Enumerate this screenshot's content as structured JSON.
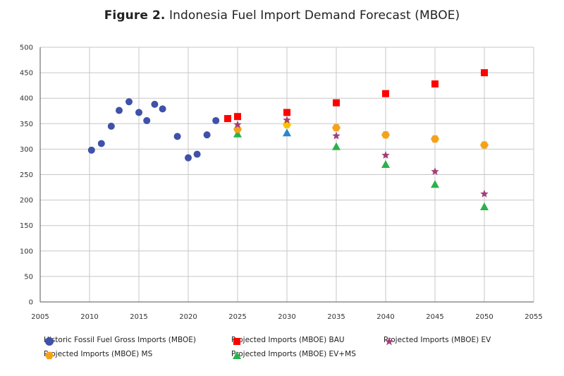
{
  "title": {
    "figure": "Figure 2.",
    "text": "Indonesia Fuel Import Demand Forecast (MBOE)"
  },
  "colors": {
    "historic": "#3f51a8",
    "bau": "#ff0000",
    "ev": "#a23d77",
    "ms": "#f5a21b",
    "ms_2030": "#ffc400",
    "evms": "#2ab24b",
    "evms_2030": "#2a86c8",
    "grid": "#c7c7c7"
  },
  "chart_data": {
    "type": "scatter",
    "title": "Indonesia Fuel Import Demand Forecast (MBOE)",
    "xlim": [
      2005,
      2055
    ],
    "ylim": [
      0,
      500
    ],
    "xticks": [
      "2005",
      "2010",
      "2015",
      "2020",
      "2025",
      "2030",
      "2035",
      "2040",
      "2045",
      "2050",
      "2055"
    ],
    "yticks": [
      "0",
      "50",
      "100",
      "150",
      "200",
      "250",
      "300",
      "350",
      "400",
      "450",
      "500"
    ],
    "grid": true,
    "legend_position": "bottom",
    "series": [
      {
        "name": "Historic Fossil Fuel Gross Imports (MBOE)",
        "marker": "circle",
        "color": "#3f51a8",
        "x": [
          2010.2,
          2011.2,
          2012.2,
          2013.0,
          2014.0,
          2015.0,
          2015.8,
          2016.6,
          2017.4,
          2018.9,
          2020.0,
          2020.9,
          2021.9,
          2022.8
        ],
        "y": [
          298,
          311,
          345,
          376,
          393,
          372,
          356,
          388,
          379,
          325,
          283,
          290,
          328,
          356
        ]
      },
      {
        "name": "Projected Imports (MBOE) BAU",
        "marker": "square",
        "color": "#ff0000",
        "x": [
          2024,
          2025,
          2030,
          2035,
          2040,
          2045,
          2050
        ],
        "y": [
          360,
          364,
          372,
          391,
          409,
          428,
          450
        ]
      },
      {
        "name": "Projected Imports (MBOE) EV",
        "marker": "star",
        "color": "#a23d77",
        "x": [
          2025,
          2030,
          2035,
          2040,
          2045,
          2050
        ],
        "y": [
          348,
          357,
          326,
          288,
          256,
          212
        ]
      },
      {
        "name": "Projected Imports (MBOE) MS",
        "marker": "hexagon",
        "color": "#f5a21b",
        "x": [
          2025,
          2030,
          2035,
          2040,
          2045,
          2050
        ],
        "y": [
          339,
          348,
          342,
          328,
          320,
          308
        ]
      },
      {
        "name": "Projected Imports (MBOE) EV+MS",
        "marker": "triangle",
        "color": "#2ab24b",
        "x": [
          2025,
          2030,
          2035,
          2040,
          2045,
          2050
        ],
        "y": [
          330,
          332,
          305,
          270,
          231,
          187
        ]
      }
    ]
  }
}
